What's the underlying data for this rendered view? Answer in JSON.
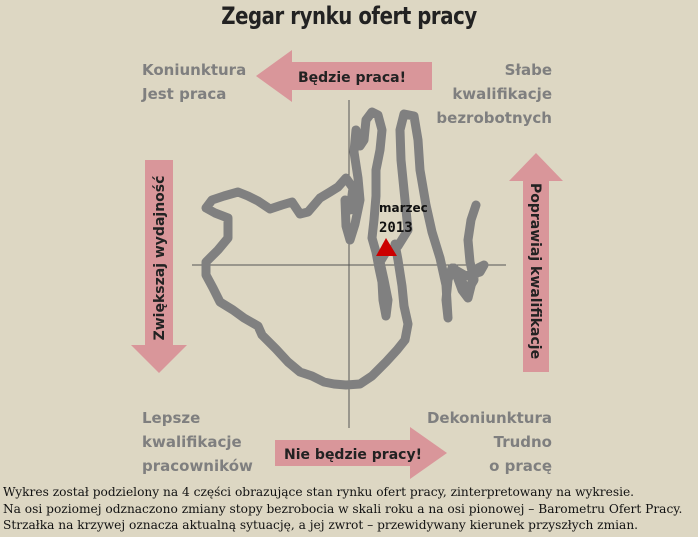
{
  "title": "Zegar rynku ofert pracy",
  "quadrants": {
    "top_left": [
      "Koniunktura",
      "Jest praca"
    ],
    "top_right": [
      "Słabe",
      "kwalifikacje",
      "bezrobotnych"
    ],
    "bottom_left": [
      "Lepsze",
      "kwalifikacje",
      "pracowników"
    ],
    "bottom_right": [
      "Dekoniunktura",
      "Trudno",
      "o pracę"
    ]
  },
  "arrows": {
    "top": "Będzie praca!",
    "bottom": "Nie będzie pracy!",
    "left": "Zwiększaj wydajność",
    "right": "Poprawiaj kwalifikacje"
  },
  "marker": {
    "label_month": "marzec",
    "label_year": "2013"
  },
  "colors": {
    "background": "#ddd7c3",
    "arrow_fill": "#d9969a",
    "curve": "#808080",
    "marker": "#cc0000"
  },
  "caption": [
    "Wykres został podzielony na 4 części obrazujące stan rynku ofert pracy, zinterpretowany na wykresie.",
    "Na osi poziomej odznaczono zmiany stopy bezrobocia w skali roku a na osi pionowej – Barometru Ofert Pracy.",
    "Strzałka na krzywej oznacza aktualną sytuację, a jej zwrot – przewidywany kierunek przyszłych zmian."
  ]
}
